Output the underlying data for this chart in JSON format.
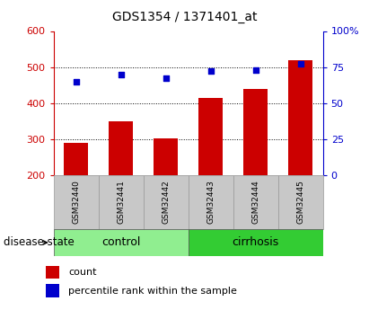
{
  "title": "GDS1354 / 1371401_at",
  "samples": [
    "GSM32440",
    "GSM32441",
    "GSM32442",
    "GSM32443",
    "GSM32444",
    "GSM32445"
  ],
  "bar_values": [
    290,
    350,
    303,
    415,
    440,
    520
  ],
  "percentile_values": [
    65,
    70,
    67,
    72,
    73,
    77
  ],
  "bar_color": "#cc0000",
  "dot_color": "#0000cc",
  "ylim_left": [
    200,
    600
  ],
  "ylim_right": [
    0,
    100
  ],
  "yticks_left": [
    200,
    300,
    400,
    500,
    600
  ],
  "yticks_right": [
    0,
    25,
    50,
    75,
    100
  ],
  "ytick_labels_right": [
    "0",
    "25",
    "50",
    "75",
    "100%"
  ],
  "groups": [
    {
      "label": "control",
      "indices": [
        0,
        1,
        2
      ],
      "color": "#90ee90"
    },
    {
      "label": "cirrhosis",
      "indices": [
        3,
        4,
        5
      ],
      "color": "#33cc33"
    }
  ],
  "disease_state_label": "disease state",
  "legend_count_label": "count",
  "legend_percentile_label": "percentile rank within the sample",
  "bar_bottom": 200,
  "background_color": "#ffffff",
  "plot_bg_color": "#ffffff",
  "label_area_color": "#c8c8c8",
  "grid_yticks": [
    300,
    400,
    500
  ]
}
